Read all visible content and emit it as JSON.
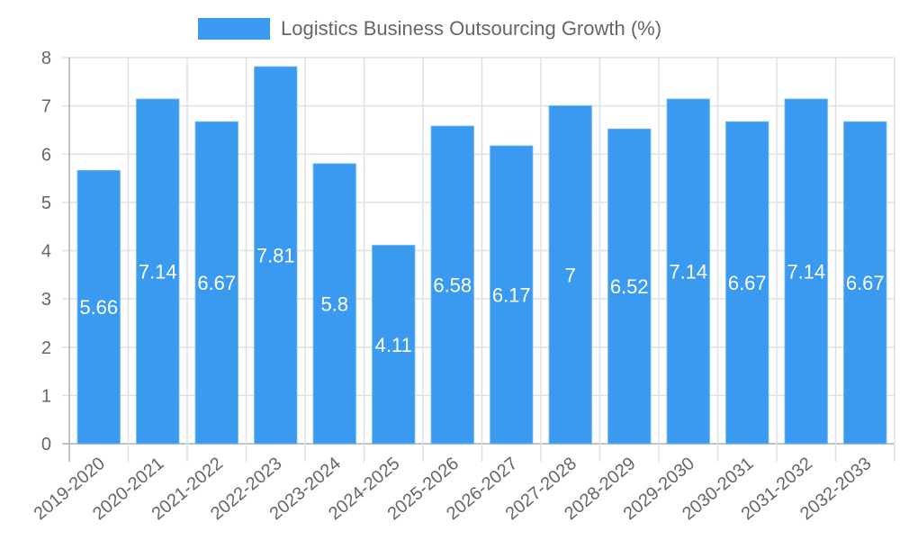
{
  "legend": {
    "label": "Logistics Business Outsourcing Growth (%)",
    "color": "#3a9af0"
  },
  "colors": {
    "bar_fill": "#3a9af0",
    "bar_border": "#62b0f5",
    "grid": "#e0e0e0",
    "axis": "#b0b0b0",
    "tick_text": "#666666",
    "bar_label_text": "#ffffff"
  },
  "chart_data": {
    "type": "bar",
    "title": "",
    "xlabel": "",
    "ylabel": "",
    "ylim": [
      0,
      8
    ],
    "yticks": [
      0,
      1,
      2,
      3,
      4,
      5,
      6,
      7,
      8
    ],
    "grid": true,
    "legend_position": "top",
    "categories": [
      "2019-2020",
      "2020-2021",
      "2021-2022",
      "2022-2023",
      "2023-2024",
      "2024-2025",
      "2025-2026",
      "2026-2027",
      "2027-2028",
      "2028-2029",
      "2029-2030",
      "2030-2031",
      "2031-2032",
      "2032-2033"
    ],
    "series": [
      {
        "name": "Logistics Business Outsourcing Growth (%)",
        "values": [
          5.66,
          7.14,
          6.67,
          7.81,
          5.8,
          4.11,
          6.58,
          6.17,
          7,
          6.52,
          7.14,
          6.67,
          7.14,
          6.67
        ],
        "labels": [
          "5.66",
          "7.14",
          "6.67",
          "7.81",
          "5.8",
          "4.11",
          "6.58",
          "6.17",
          "7",
          "6.52",
          "7.14",
          "6.67",
          "7.14",
          "6.67"
        ]
      }
    ]
  }
}
